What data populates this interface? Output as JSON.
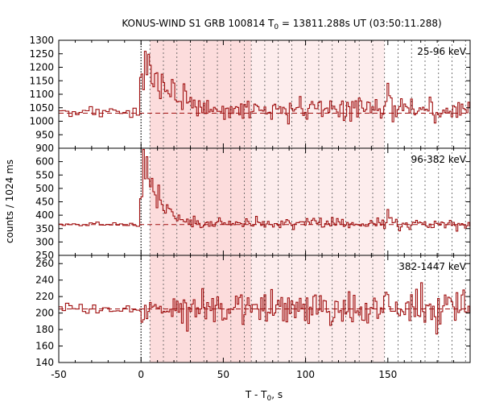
{
  "chart_data": {
    "type": "line",
    "title": "KONUS-WIND S1 GRB 100814 T",
    "title_sub": "0",
    "title_rest": " = 13811.288s UT (03:50:11.288)",
    "xlabel": "T - T",
    "xlabel_sub": "0",
    "xlabel_rest": ", s",
    "ylabel": "counts / 1024 ms",
    "xlim": [
      -50,
      200
    ],
    "x_ticks": [
      -50,
      0,
      50,
      100,
      150
    ],
    "trigger_time": 0,
    "shade_dark": [
      5.4,
      67.0
    ],
    "shade_light": [
      67.0,
      148.0
    ],
    "dashed_interval_times": [
      5.4,
      13.6,
      21.8,
      30.0,
      38.2,
      46.4,
      54.6,
      62.8,
      67.0,
      75.2,
      83.4,
      91.6,
      99.8,
      108.0,
      116.2,
      124.4,
      132.6,
      140.8,
      148.0,
      156.2,
      164.4,
      172.6,
      180.8,
      189.0,
      197.2
    ],
    "panels": [
      {
        "band": "25-96 keV",
        "ylim": [
          900,
          1300
        ],
        "y_ticks": [
          900,
          950,
          1000,
          1050,
          1100,
          1150,
          1200,
          1250,
          1300
        ],
        "background": 1030,
        "segments": [
          {
            "t0": -50,
            "t1": 0,
            "dt": 2.048,
            "level": 1030,
            "noise": 12
          },
          {
            "t0": 0,
            "t1": 200,
            "dt": 1.024,
            "level": 1040,
            "noise": 28
          }
        ],
        "features": [
          {
            "t": 0.0,
            "amp": 140,
            "tau": 2.5
          },
          {
            "t": 2.0,
            "amp": 230,
            "tau": 2.2
          },
          {
            "t": 4.0,
            "amp": 160,
            "tau": 4.0
          },
          {
            "t": 8.0,
            "amp": 120,
            "tau": 3.0
          },
          {
            "t": 12.0,
            "amp": 100,
            "tau": 4.0
          },
          {
            "t": 18.0,
            "amp": 70,
            "tau": 6.0
          },
          {
            "t": 26.0,
            "amp": 50,
            "tau": 8.0
          },
          {
            "t": 150.0,
            "amp": 90,
            "tau": 1.5
          }
        ]
      },
      {
        "band": "96-382 keV",
        "ylim": [
          250,
          650
        ],
        "y_ticks": [
          250,
          300,
          350,
          400,
          450,
          500,
          550,
          600
        ],
        "background": 365,
        "segments": [
          {
            "t0": -50,
            "t1": 0,
            "dt": 2.048,
            "level": 365,
            "noise": 6
          },
          {
            "t0": 0,
            "t1": 200,
            "dt": 1.024,
            "level": 368,
            "noise": 14
          }
        ],
        "features": [
          {
            "t": 0.0,
            "amp": 100,
            "tau": 3.0
          },
          {
            "t": 1.0,
            "amp": 260,
            "tau": 2.0
          },
          {
            "t": 3.0,
            "amp": 180,
            "tau": 3.0
          },
          {
            "t": 6.0,
            "amp": 120,
            "tau": 4.0
          },
          {
            "t": 10.0,
            "amp": 90,
            "tau": 3.0
          },
          {
            "t": 15.0,
            "amp": 60,
            "tau": 5.0
          },
          {
            "t": 150.0,
            "amp": 40,
            "tau": 2.0
          }
        ]
      },
      {
        "band": "382-1447 keV",
        "ylim": [
          140,
          270
        ],
        "y_ticks": [
          140,
          160,
          180,
          200,
          220,
          240,
          260
        ],
        "background": 205,
        "segments": [
          {
            "t0": -50,
            "t1": 0,
            "dt": 2.048,
            "level": 205,
            "noise": 4
          },
          {
            "t0": 0,
            "t1": 200,
            "dt": 1.024,
            "level": 206,
            "noise": 14
          }
        ],
        "features": []
      }
    ]
  }
}
